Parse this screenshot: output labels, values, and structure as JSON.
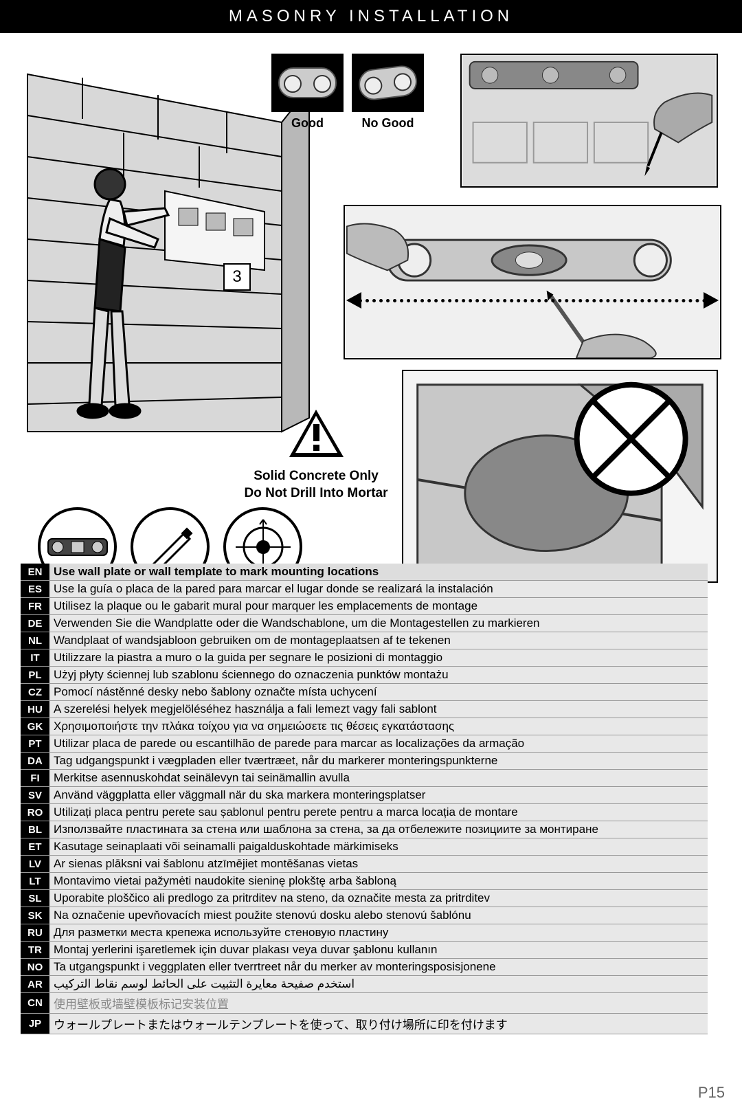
{
  "title": "MASONRY INSTALLATION",
  "step_number": "3",
  "level_good_label": "Good",
  "level_bad_label": "No Good",
  "warning_line1": "Solid Concrete Only",
  "warning_line2": "Do Not Drill Into Mortar",
  "page_number": "P15",
  "colors": {
    "title_bg": "#000000",
    "title_fg": "#ffffff",
    "code_bg": "#000000",
    "row_bg": "#e8e8e8",
    "header_row_bg": "#dddddd"
  },
  "instructions": [
    {
      "code": "EN",
      "text": "Use wall plate or wall template to mark mounting locations"
    },
    {
      "code": "ES",
      "text": "Use la guía o placa de la pared para marcar el lugar donde se realizará la instalación"
    },
    {
      "code": "FR",
      "text": "Utilisez la plaque ou le gabarit mural pour marquer les emplacements de montage"
    },
    {
      "code": "DE",
      "text": "Verwenden Sie die Wandplatte oder die Wandschablone, um die Montagestellen zu markieren"
    },
    {
      "code": "NL",
      "text": "Wandplaat of wandsjabloon gebruiken om de montageplaatsen af te tekenen"
    },
    {
      "code": "IT",
      "text": "Utilizzare la piastra a muro o la guida per segnare le posizioni di montaggio"
    },
    {
      "code": "PL",
      "text": "Użyj płyty ściennej lub szablonu ściennego do oznaczenia punktów montażu"
    },
    {
      "code": "CZ",
      "text": "Pomocí nástěnné desky nebo šablony označte místa uchycení"
    },
    {
      "code": "HU",
      "text": "A szerelési helyek megjelöléséhez használja a fali lemezt vagy fali sablont"
    },
    {
      "code": "GK",
      "text": "Χρησιμοποιήστε την πλάκα τοίχου για να σημειώσετε τις θέσεις εγκατάστασης"
    },
    {
      "code": "PT",
      "text": "Utilizar placa de parede ou escantilhão de parede para marcar as localizações da armação"
    },
    {
      "code": "DA",
      "text": "Tag udgangspunkt i vægpladen eller tværtræet, når du markerer monteringspunkterne"
    },
    {
      "code": "FI",
      "text": "Merkitse asennuskohdat seinälevyn tai seinämallin avulla"
    },
    {
      "code": "SV",
      "text": "Använd väggplatta eller väggmall när du ska markera monteringsplatser"
    },
    {
      "code": "RO",
      "text": "Utilizați placa pentru perete sau șablonul pentru perete pentru a marca locația de montare"
    },
    {
      "code": "BL",
      "text": "Използвайте пластината за стена или шаблона за стена, за да отбележите позициите за монтиране"
    },
    {
      "code": "ET",
      "text": "Kasutage seinaplaati või seinamalli paigalduskohtade märkimiseks"
    },
    {
      "code": "LV",
      "text": "Ar sienas plāksni vai šablonu atzīmējiet montēšanas vietas"
    },
    {
      "code": "LT",
      "text": "Montavimo vietai pažymėti naudokite sieninę plokštę arba šabloną"
    },
    {
      "code": "SL",
      "text": "Uporabite ploščico ali predlogo za pritrditev na steno, da označite mesta za pritrditev"
    },
    {
      "code": "SK",
      "text": "Na označenie upevňovacích miest použite stenovú dosku alebo stenovú šablónu"
    },
    {
      "code": "RU",
      "text": "Для разметки места крепежа используйте стеновую пластину"
    },
    {
      "code": "TR",
      "text": "Montaj yerlerini işaretlemek için duvar plakası veya duvar şablonu kullanın"
    },
    {
      "code": "NO",
      "text": "Ta utgangspunkt i veggplaten eller tverrtreet når du merker av monteringsposisjonene"
    },
    {
      "code": "AR",
      "text": "استخدم صفيحة معايرة التثبيت على الحائط لوسم نقاط التركيب",
      "rtl": true
    },
    {
      "code": "CN",
      "text": "使用壁板或墙壁模板标记安装位置"
    },
    {
      "code": "JP",
      "text": "ウォールプレートまたはウォールテンプレートを使って、取り付け場所に印を付けます"
    }
  ]
}
